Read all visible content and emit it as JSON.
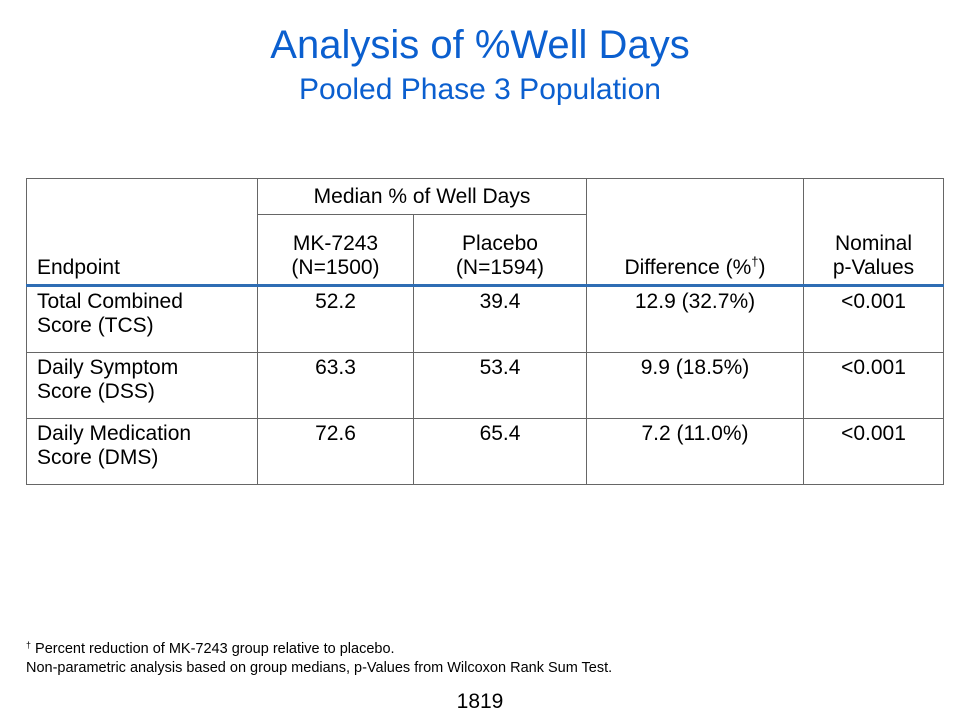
{
  "slide": {
    "title": "Analysis of %Well Days",
    "subtitle": "Pooled Phase 3 Population",
    "page_number": "1819"
  },
  "table": {
    "headers": {
      "endpoint": "Endpoint",
      "median_group": "Median % of Well Days",
      "drug_line1": "MK-7243",
      "drug_line2": "(N=1500)",
      "placebo_line1": "Placebo",
      "placebo_line2": "(N=1594)",
      "difference_prefix": "Difference (%",
      "difference_dagger": "†",
      "difference_suffix": ")",
      "pvalue_line1": "Nominal",
      "pvalue_line2": "p-Values"
    },
    "rows": [
      {
        "endpoint_line1": "Total Combined",
        "endpoint_line2": "Score (TCS)",
        "drug": "52.2",
        "placebo": "39.4",
        "difference": "12.9 (32.7%)",
        "pvalue": "<0.001"
      },
      {
        "endpoint_line1": "Daily Symptom",
        "endpoint_line2": "Score (DSS)",
        "drug": "63.3",
        "placebo": "53.4",
        "difference": "9.9 (18.5%)",
        "pvalue": "<0.001"
      },
      {
        "endpoint_line1": "Daily Medication",
        "endpoint_line2": "Score (DMS)",
        "drug": "72.6",
        "placebo": "65.4",
        "difference": "7.2 (11.0%)",
        "pvalue": "<0.001"
      }
    ]
  },
  "footnotes": {
    "dagger_symbol": "†",
    "line1": " Percent reduction of MK-7243 group relative to placebo.",
    "line2": "Non-parametric analysis based on group medians, p-Values from Wilcoxon Rank Sum Test."
  },
  "colors": {
    "title": "#0b5fcf",
    "header_rule": "#2e6db4",
    "border": "#666666"
  }
}
